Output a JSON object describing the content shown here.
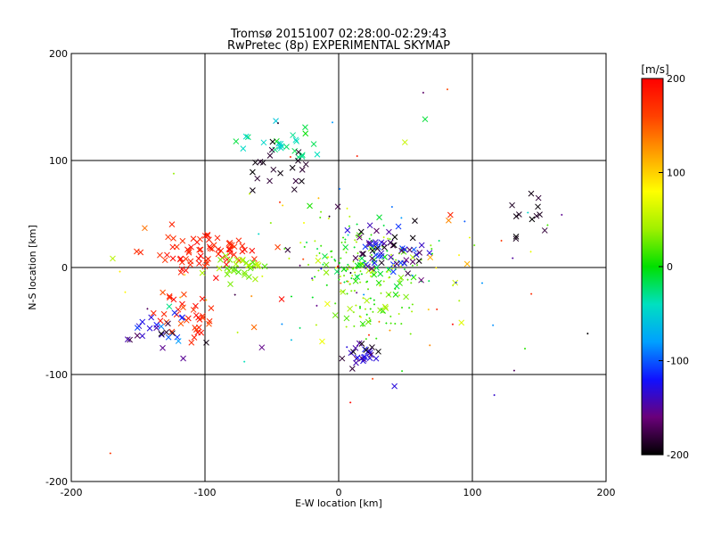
{
  "chart_data": {
    "type": "scatter",
    "title": "Tromsø 20151007 02:28:00-02:29:43",
    "subtitle": "RwPretec (8p) EXPERIMENTAL SKYMAP",
    "xlabel": "E-W location [km]",
    "ylabel": "N-S location [km]",
    "xlim": [
      -200,
      200
    ],
    "ylim": [
      -200,
      200
    ],
    "xticks": [
      "-200",
      "-100",
      "0",
      "100",
      "200"
    ],
    "yticks": [
      "-200",
      "-100",
      "0",
      "100",
      "200"
    ],
    "grid": true,
    "colorbar": {
      "label": "[m/s]",
      "range": [
        -200,
        200
      ],
      "ticks": [
        "200",
        "100",
        "0",
        "-100",
        "-200"
      ],
      "colors": [
        "#000000",
        "#6a007a",
        "#1010ff",
        "#00a0ff",
        "#00e0c0",
        "#00e000",
        "#a0f000",
        "#ffff00",
        "#ffa000",
        "#ff4000",
        "#ff0000"
      ]
    },
    "clusters": [
      {
        "x": -110,
        "y": 15,
        "spread": [
          15,
          10
        ],
        "n": 45,
        "v": [
          170,
          200
        ],
        "marker": "x"
      },
      {
        "x": -85,
        "y": 15,
        "spread": [
          10,
          6
        ],
        "n": 25,
        "v": [
          170,
          200
        ],
        "marker": "x"
      },
      {
        "x": -72,
        "y": -2,
        "spread": [
          10,
          6
        ],
        "n": 30,
        "v": [
          10,
          50
        ],
        "marker": "x"
      },
      {
        "x": -115,
        "y": -45,
        "spread": [
          12,
          10
        ],
        "n": 35,
        "v": [
          150,
          200
        ],
        "marker": "x"
      },
      {
        "x": -140,
        "y": -55,
        "spread": [
          10,
          10
        ],
        "n": 25,
        "v": [
          -200,
          -80
        ],
        "marker": "x"
      },
      {
        "x": -40,
        "y": 115,
        "spread": [
          15,
          10
        ],
        "n": 25,
        "v": [
          -60,
          0
        ],
        "marker": "x"
      },
      {
        "x": -45,
        "y": 95,
        "spread": [
          12,
          12
        ],
        "n": 20,
        "v": [
          -200,
          -180
        ],
        "marker": "x"
      },
      {
        "x": 15,
        "y": 5,
        "spread": [
          25,
          15
        ],
        "n": 140,
        "v": [
          -20,
          60
        ],
        "marker": "+"
      },
      {
        "x": 35,
        "y": 15,
        "spread": [
          15,
          12
        ],
        "n": 60,
        "v": [
          -200,
          -100
        ],
        "marker": "x"
      },
      {
        "x": 30,
        "y": -30,
        "spread": [
          15,
          20
        ],
        "n": 70,
        "v": [
          0,
          50
        ],
        "marker": "+"
      },
      {
        "x": 20,
        "y": -80,
        "spread": [
          8,
          6
        ],
        "n": 25,
        "v": [
          -200,
          -120
        ],
        "marker": "x"
      },
      {
        "x": 145,
        "y": 50,
        "spread": [
          12,
          10
        ],
        "n": 12,
        "v": [
          -200,
          -180
        ],
        "marker": "x"
      },
      {
        "x": 0,
        "y": 0,
        "spread": [
          80,
          60
        ],
        "n": 120,
        "v": [
          -200,
          200
        ],
        "marker": "+"
      }
    ]
  }
}
